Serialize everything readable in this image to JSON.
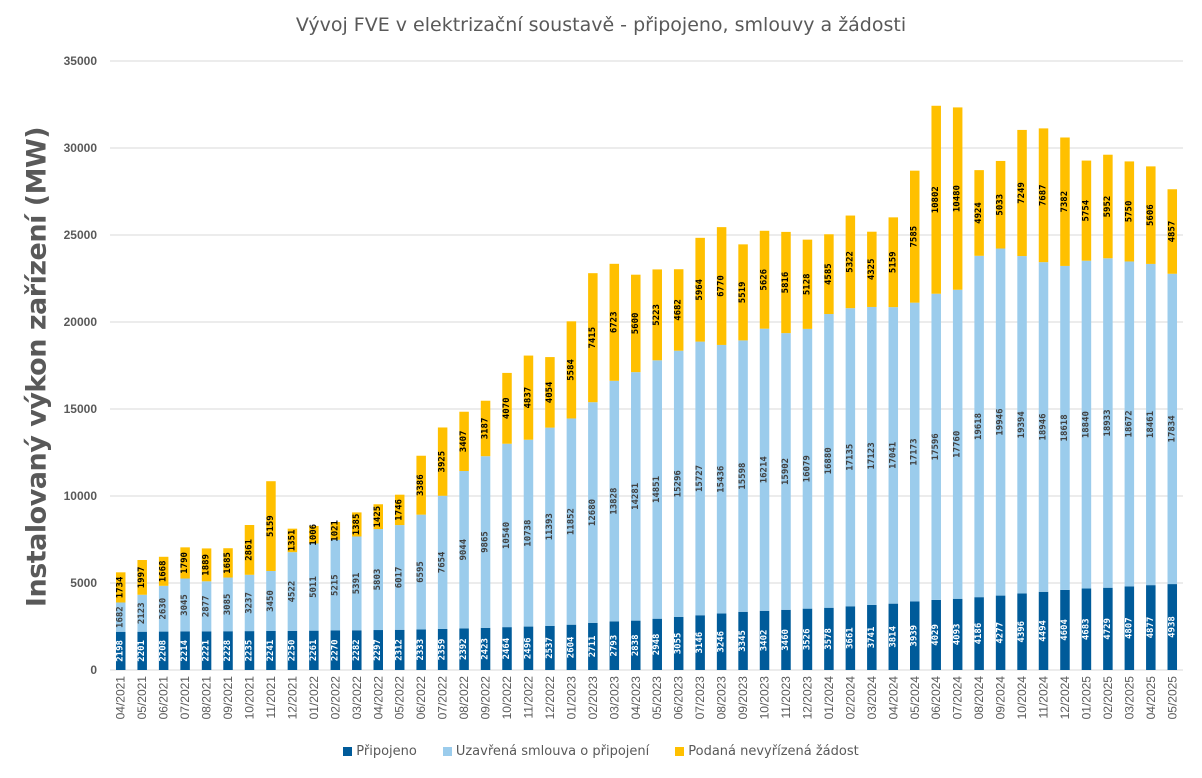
{
  "chart_data": {
    "type": "bar",
    "stacked": true,
    "title": "Vývoj FVE v elektrizační soustavě - připojeno, smlouvy a žádosti",
    "xlabel": "",
    "ylabel": "Instalovaný výkon zařízení (MW)",
    "ylim": [
      0,
      35000
    ],
    "yticks": [
      0,
      5000,
      10000,
      15000,
      20000,
      25000,
      30000,
      35000
    ],
    "grid": true,
    "legend_position": "bottom",
    "categories": [
      "04/2021",
      "05/2021",
      "06/2021",
      "07/2021",
      "08/2021",
      "09/2021",
      "10/2021",
      "11/2021",
      "12/2021",
      "01/2022",
      "02/2022",
      "03/2022",
      "04/2022",
      "05/2022",
      "06/2022",
      "07/2022",
      "08/2022",
      "09/2022",
      "10/2022",
      "11/2022",
      "12/2022",
      "01/2023",
      "02/2023",
      "03/2023",
      "04/2023",
      "05/2023",
      "06/2023",
      "07/2023",
      "08/2023",
      "09/2023",
      "10/2023",
      "11/2023",
      "12/2023",
      "01/2024",
      "02/2024",
      "03/2024",
      "04/2024",
      "05/2024",
      "06/2024",
      "07/2024",
      "08/2024",
      "09/2024",
      "10/2024",
      "11/2024",
      "12/2024",
      "01/2025",
      "02/2025",
      "03/2025",
      "04/2025",
      "05/2025"
    ],
    "series": [
      {
        "name": "Připojeno",
        "color": "#005B9A",
        "label_color": "#ffffff",
        "values": [
          2198,
          2201,
          2208,
          2214,
          2221,
          2228,
          2235,
          2241,
          2250,
          2261,
          2270,
          2282,
          2297,
          2312,
          2333,
          2359,
          2392,
          2423,
          2464,
          2496,
          2537,
          2604,
          2711,
          2793,
          2838,
          2948,
          3055,
          3146,
          3246,
          3345,
          3402,
          3460,
          3526,
          3578,
          3661,
          3741,
          3814,
          3939,
          4029,
          4093,
          4186,
          4277,
          4396,
          4494,
          4604,
          4683,
          4729,
          4807,
          4877,
          4938
        ]
      },
      {
        "name": "Uzavřená smlouva o připojení",
        "color": "#9BCCEC",
        "label_color": "#404040",
        "values": [
          1682,
          2123,
          2630,
          3045,
          2877,
          3085,
          3237,
          3450,
          4522,
          5011,
          5215,
          5391,
          5803,
          6017,
          6595,
          7654,
          9044,
          9865,
          10540,
          10738,
          11393,
          11852,
          12680,
          13828,
          14281,
          14851,
          15296,
          15727,
          15436,
          15598,
          16214,
          15902,
          16079,
          16880,
          17135,
          17123,
          17041,
          17173,
          17596,
          17760,
          19618,
          19946,
          19394,
          18946,
          18618,
          18840,
          18933,
          18672,
          18461,
          17834
        ]
      },
      {
        "name": "Podaná nevyřízená žádost",
        "color": "#FFC000",
        "label_color": "#000000",
        "values": [
          1734,
          1997,
          1668,
          1790,
          1889,
          1685,
          2861,
          5159,
          1351,
          1006,
          1021,
          1385,
          1425,
          1746,
          3386,
          3925,
          3407,
          3187,
          4070,
          4837,
          4054,
          5584,
          7415,
          6723,
          5600,
          5223,
          4682,
          5964,
          6770,
          5519,
          5626,
          5816,
          5128,
          4585,
          5322,
          4325,
          5159,
          7585,
          10802,
          10480,
          4924,
          5033,
          7249,
          7687,
          7382,
          5754,
          5952,
          5750,
          5606,
          4857
        ]
      }
    ]
  }
}
